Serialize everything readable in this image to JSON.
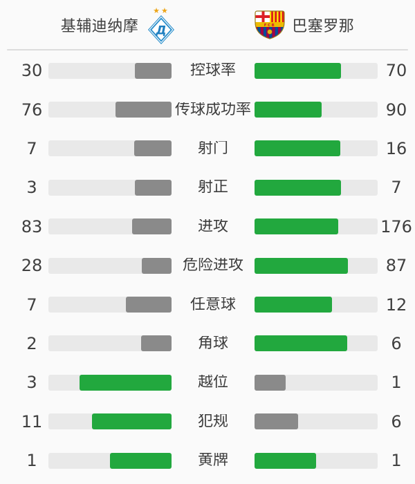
{
  "header": {
    "home": {
      "name": "基辅迪纳摩",
      "badge_icon": "dynamo-kyiv-crest",
      "badge_letter": "Д"
    },
    "away": {
      "name": "巴塞罗那",
      "badge_icon": "fc-barcelona-crest",
      "badge_text": "FCB"
    }
  },
  "colors": {
    "leading_bar": "#22a83e",
    "trailing_bar": "#8a8a8a",
    "bar_track": "#e9e9e9",
    "background": "#fafafa",
    "divider": "#dcdcdc",
    "text": "#404040"
  },
  "stats": [
    {
      "label": "控球率",
      "home": 30,
      "away": 70
    },
    {
      "label": "传球成功率",
      "home": 76,
      "away": 90
    },
    {
      "label": "射门",
      "home": 7,
      "away": 16
    },
    {
      "label": "射正",
      "home": 3,
      "away": 7
    },
    {
      "label": "进攻",
      "home": 83,
      "away": 176
    },
    {
      "label": "危险进攻",
      "home": 28,
      "away": 87
    },
    {
      "label": "任意球",
      "home": 7,
      "away": 12
    },
    {
      "label": "角球",
      "home": 2,
      "away": 6
    },
    {
      "label": "越位",
      "home": 3,
      "away": 1
    },
    {
      "label": "犯规",
      "home": 11,
      "away": 6
    },
    {
      "label": "黄牌",
      "home": 1,
      "away": 1
    }
  ],
  "chart_data": {
    "type": "bar",
    "orientation": "horizontal-paired",
    "categories": [
      "控球率",
      "传球成功率",
      "射门",
      "射正",
      "进攻",
      "危险进攻",
      "任意球",
      "角球",
      "越位",
      "犯规",
      "黄牌"
    ],
    "series": [
      {
        "name": "基辅迪纳摩",
        "values": [
          30,
          76,
          7,
          3,
          83,
          28,
          7,
          2,
          3,
          11,
          1
        ]
      },
      {
        "name": "巴塞罗那",
        "values": [
          70,
          90,
          16,
          7,
          176,
          87,
          12,
          6,
          1,
          6,
          1
        ]
      }
    ],
    "bar_rule": "width = value / (home + away); green = value >= opponent, gray = value < opponent"
  }
}
